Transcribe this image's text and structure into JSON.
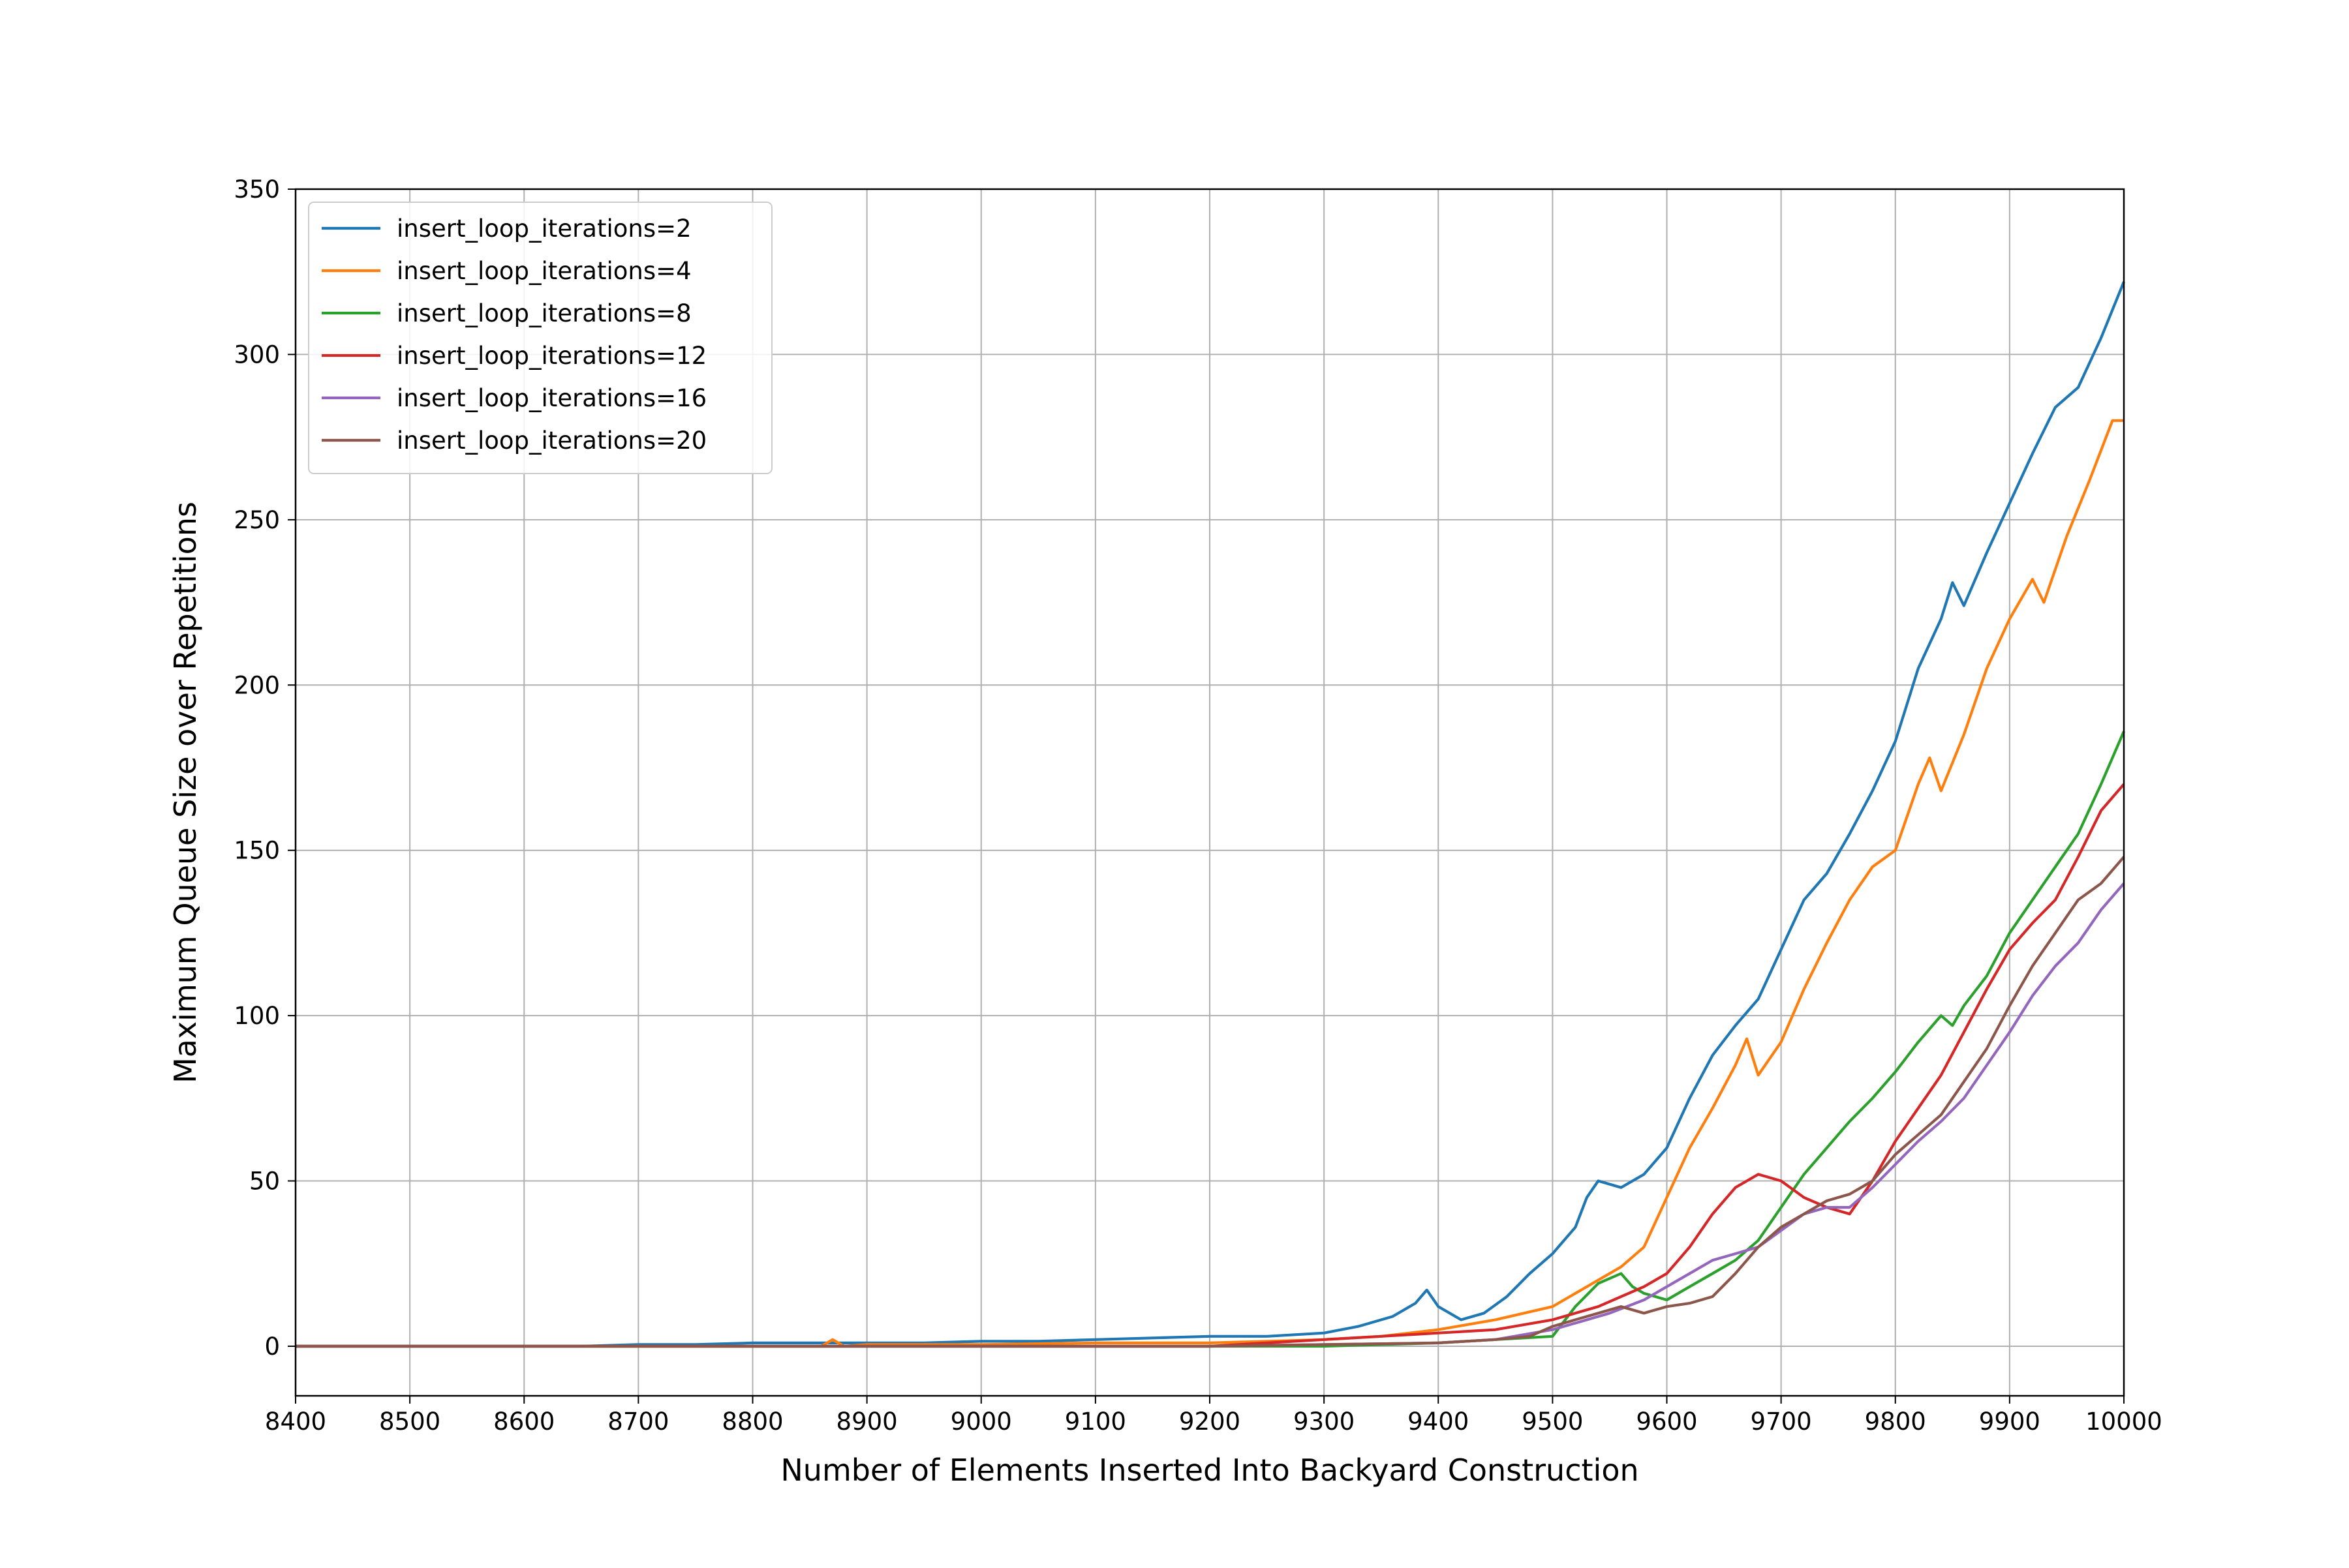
{
  "chart_data": {
    "type": "line",
    "title": "",
    "xlabel": "Number of Elements Inserted Into Backyard Construction",
    "ylabel": "Maximum Queue Size over Repetitions",
    "xlim": [
      8400,
      10000
    ],
    "ylim": [
      -15,
      350
    ],
    "xticks": [
      8400,
      8500,
      8600,
      8700,
      8800,
      8900,
      9000,
      9100,
      9200,
      9300,
      9400,
      9500,
      9600,
      9700,
      9800,
      9900,
      10000
    ],
    "yticks": [
      0,
      50,
      100,
      150,
      200,
      250,
      300,
      350
    ],
    "grid": true,
    "legend_position": "top-left",
    "series": [
      {
        "name": "insert_loop_iterations=2",
        "color": "#1f77b4",
        "points": [
          [
            8400,
            0
          ],
          [
            8450,
            0
          ],
          [
            8500,
            0
          ],
          [
            8550,
            0
          ],
          [
            8600,
            0
          ],
          [
            8650,
            0
          ],
          [
            8700,
            0.5
          ],
          [
            8750,
            0.5
          ],
          [
            8800,
            1
          ],
          [
            8850,
            1
          ],
          [
            8900,
            1
          ],
          [
            8950,
            1
          ],
          [
            9000,
            1.5
          ],
          [
            9050,
            1.5
          ],
          [
            9100,
            2
          ],
          [
            9150,
            2.5
          ],
          [
            9200,
            3
          ],
          [
            9250,
            3
          ],
          [
            9300,
            4
          ],
          [
            9330,
            6
          ],
          [
            9360,
            9
          ],
          [
            9380,
            13
          ],
          [
            9390,
            17
          ],
          [
            9400,
            12
          ],
          [
            9410,
            10
          ],
          [
            9420,
            8
          ],
          [
            9440,
            10
          ],
          [
            9460,
            15
          ],
          [
            9480,
            22
          ],
          [
            9500,
            28
          ],
          [
            9520,
            36
          ],
          [
            9530,
            45
          ],
          [
            9540,
            50
          ],
          [
            9560,
            48
          ],
          [
            9580,
            52
          ],
          [
            9600,
            60
          ],
          [
            9620,
            75
          ],
          [
            9640,
            88
          ],
          [
            9660,
            97
          ],
          [
            9680,
            105
          ],
          [
            9700,
            120
          ],
          [
            9720,
            135
          ],
          [
            9740,
            143
          ],
          [
            9760,
            155
          ],
          [
            9780,
            168
          ],
          [
            9800,
            183
          ],
          [
            9820,
            205
          ],
          [
            9840,
            220
          ],
          [
            9850,
            231
          ],
          [
            9860,
            224
          ],
          [
            9880,
            240
          ],
          [
            9900,
            255
          ],
          [
            9920,
            270
          ],
          [
            9940,
            284
          ],
          [
            9960,
            290
          ],
          [
            9980,
            305
          ],
          [
            10000,
            322
          ]
        ]
      },
      {
        "name": "insert_loop_iterations=4",
        "color": "#ff7f0e",
        "points": [
          [
            8400,
            0
          ],
          [
            8500,
            0
          ],
          [
            8600,
            0
          ],
          [
            8700,
            0
          ],
          [
            8800,
            0
          ],
          [
            8860,
            0
          ],
          [
            8870,
            2
          ],
          [
            8880,
            0
          ],
          [
            8900,
            0.5
          ],
          [
            9000,
            0.5
          ],
          [
            9100,
            1
          ],
          [
            9200,
            1
          ],
          [
            9300,
            2
          ],
          [
            9350,
            3
          ],
          [
            9400,
            5
          ],
          [
            9450,
            8
          ],
          [
            9500,
            12
          ],
          [
            9520,
            16
          ],
          [
            9540,
            20
          ],
          [
            9560,
            24
          ],
          [
            9580,
            30
          ],
          [
            9600,
            45
          ],
          [
            9620,
            60
          ],
          [
            9640,
            72
          ],
          [
            9660,
            85
          ],
          [
            9670,
            93
          ],
          [
            9680,
            82
          ],
          [
            9700,
            92
          ],
          [
            9720,
            108
          ],
          [
            9740,
            122
          ],
          [
            9760,
            135
          ],
          [
            9780,
            145
          ],
          [
            9800,
            150
          ],
          [
            9820,
            170
          ],
          [
            9830,
            178
          ],
          [
            9840,
            168
          ],
          [
            9860,
            185
          ],
          [
            9880,
            205
          ],
          [
            9900,
            220
          ],
          [
            9920,
            232
          ],
          [
            9930,
            225
          ],
          [
            9950,
            245
          ],
          [
            9970,
            262
          ],
          [
            9990,
            280
          ],
          [
            10000,
            280
          ]
        ]
      },
      {
        "name": "insert_loop_iterations=8",
        "color": "#2ca02c",
        "points": [
          [
            8400,
            0
          ],
          [
            8600,
            0
          ],
          [
            8800,
            0
          ],
          [
            9000,
            0
          ],
          [
            9200,
            0
          ],
          [
            9300,
            0
          ],
          [
            9400,
            1
          ],
          [
            9450,
            2
          ],
          [
            9500,
            3
          ],
          [
            9520,
            12
          ],
          [
            9540,
            19
          ],
          [
            9560,
            22
          ],
          [
            9570,
            18
          ],
          [
            9580,
            16
          ],
          [
            9600,
            14
          ],
          [
            9620,
            18
          ],
          [
            9640,
            22
          ],
          [
            9660,
            26
          ],
          [
            9680,
            32
          ],
          [
            9700,
            42
          ],
          [
            9720,
            52
          ],
          [
            9740,
            60
          ],
          [
            9760,
            68
          ],
          [
            9780,
            75
          ],
          [
            9800,
            83
          ],
          [
            9820,
            92
          ],
          [
            9840,
            100
          ],
          [
            9850,
            97
          ],
          [
            9860,
            103
          ],
          [
            9880,
            112
          ],
          [
            9900,
            125
          ],
          [
            9920,
            135
          ],
          [
            9940,
            145
          ],
          [
            9960,
            155
          ],
          [
            9980,
            170
          ],
          [
            10000,
            186
          ]
        ]
      },
      {
        "name": "insert_loop_iterations=12",
        "color": "#d62728",
        "points": [
          [
            8400,
            0
          ],
          [
            8600,
            0
          ],
          [
            8800,
            0
          ],
          [
            9000,
            0
          ],
          [
            9200,
            0
          ],
          [
            9300,
            2
          ],
          [
            9350,
            3
          ],
          [
            9400,
            4
          ],
          [
            9450,
            5
          ],
          [
            9500,
            8
          ],
          [
            9540,
            12
          ],
          [
            9560,
            15
          ],
          [
            9580,
            18
          ],
          [
            9600,
            22
          ],
          [
            9620,
            30
          ],
          [
            9640,
            40
          ],
          [
            9660,
            48
          ],
          [
            9680,
            52
          ],
          [
            9700,
            50
          ],
          [
            9720,
            45
          ],
          [
            9740,
            42
          ],
          [
            9760,
            40
          ],
          [
            9780,
            50
          ],
          [
            9800,
            62
          ],
          [
            9820,
            72
          ],
          [
            9840,
            82
          ],
          [
            9860,
            95
          ],
          [
            9880,
            108
          ],
          [
            9900,
            120
          ],
          [
            9920,
            128
          ],
          [
            9940,
            135
          ],
          [
            9960,
            148
          ],
          [
            9980,
            162
          ],
          [
            10000,
            170
          ]
        ]
      },
      {
        "name": "insert_loop_iterations=16",
        "color": "#9467bd",
        "points": [
          [
            8400,
            0
          ],
          [
            8600,
            0
          ],
          [
            8800,
            0
          ],
          [
            9000,
            0
          ],
          [
            9200,
            0
          ],
          [
            9400,
            1
          ],
          [
            9450,
            2
          ],
          [
            9500,
            5
          ],
          [
            9550,
            10
          ],
          [
            9580,
            14
          ],
          [
            9600,
            18
          ],
          [
            9620,
            22
          ],
          [
            9640,
            26
          ],
          [
            9660,
            28
          ],
          [
            9680,
            30
          ],
          [
            9700,
            35
          ],
          [
            9720,
            40
          ],
          [
            9740,
            42
          ],
          [
            9760,
            42
          ],
          [
            9780,
            48
          ],
          [
            9800,
            55
          ],
          [
            9820,
            62
          ],
          [
            9840,
            68
          ],
          [
            9860,
            75
          ],
          [
            9880,
            85
          ],
          [
            9900,
            95
          ],
          [
            9920,
            106
          ],
          [
            9940,
            115
          ],
          [
            9960,
            122
          ],
          [
            9980,
            132
          ],
          [
            10000,
            140
          ]
        ]
      },
      {
        "name": "insert_loop_iterations=20",
        "color": "#8c564b",
        "points": [
          [
            8400,
            0
          ],
          [
            8600,
            0
          ],
          [
            8800,
            0
          ],
          [
            9000,
            0
          ],
          [
            9200,
            0
          ],
          [
            9400,
            1
          ],
          [
            9450,
            2
          ],
          [
            9480,
            3
          ],
          [
            9500,
            6
          ],
          [
            9520,
            8
          ],
          [
            9540,
            10
          ],
          [
            9560,
            12
          ],
          [
            9580,
            10
          ],
          [
            9600,
            12
          ],
          [
            9620,
            13
          ],
          [
            9640,
            15
          ],
          [
            9660,
            22
          ],
          [
            9680,
            30
          ],
          [
            9700,
            36
          ],
          [
            9720,
            40
          ],
          [
            9740,
            44
          ],
          [
            9760,
            46
          ],
          [
            9780,
            50
          ],
          [
            9800,
            58
          ],
          [
            9820,
            64
          ],
          [
            9840,
            70
          ],
          [
            9860,
            80
          ],
          [
            9880,
            90
          ],
          [
            9900,
            103
          ],
          [
            9920,
            115
          ],
          [
            9940,
            125
          ],
          [
            9960,
            135
          ],
          [
            9980,
            140
          ],
          [
            10000,
            148
          ]
        ]
      }
    ]
  }
}
